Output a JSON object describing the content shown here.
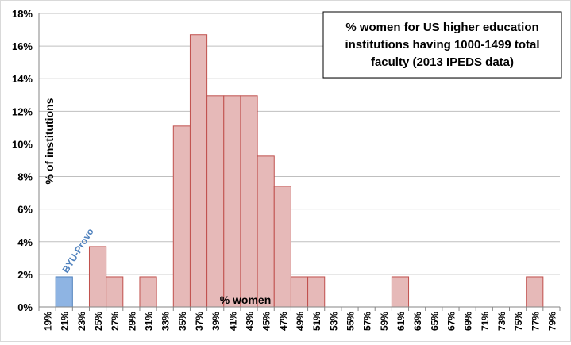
{
  "chart_data": {
    "type": "bar",
    "title": "% women for US higher education institutions having 1000-1499 total faculty (2013 IPEDS data)",
    "title_lines": [
      "% women for US higher education",
      "institutions having 1000-1499 total",
      "faculty (2013 IPEDS data)"
    ],
    "xlabel": "% women",
    "ylabel": "% of institutions",
    "ylim": [
      0,
      18
    ],
    "y_ticks": [
      "0%",
      "2%",
      "4%",
      "6%",
      "8%",
      "10%",
      "12%",
      "14%",
      "16%",
      "18%"
    ],
    "categories": [
      "19%",
      "21%",
      "23%",
      "25%",
      "27%",
      "29%",
      "31%",
      "33%",
      "35%",
      "37%",
      "39%",
      "41%",
      "43%",
      "45%",
      "47%",
      "49%",
      "51%",
      "53%",
      "55%",
      "57%",
      "59%",
      "61%",
      "63%",
      "65%",
      "67%",
      "69%",
      "71%",
      "73%",
      "75%",
      "77%",
      "79%"
    ],
    "values": [
      0,
      1.85,
      0,
      3.7,
      1.85,
      0,
      1.85,
      0,
      11.1,
      16.7,
      12.95,
      12.95,
      12.95,
      9.25,
      7.4,
      1.85,
      1.85,
      0,
      0,
      0,
      0,
      1.85,
      0,
      0,
      0,
      0,
      0,
      0,
      0,
      1.85,
      0
    ],
    "highlight_category": "21%",
    "highlight_label": "BYU-Provo",
    "grid": true,
    "legend": "none",
    "colors": {
      "bar_fill": "#e6b9b8",
      "bar_stroke": "#c0504d",
      "highlight_fill": "#8eb4e3",
      "highlight_stroke": "#4f81bd",
      "highlight_label": "#4f81bd",
      "grid": "#bfbfbf",
      "axis": "#868686",
      "text": "#000000"
    }
  }
}
